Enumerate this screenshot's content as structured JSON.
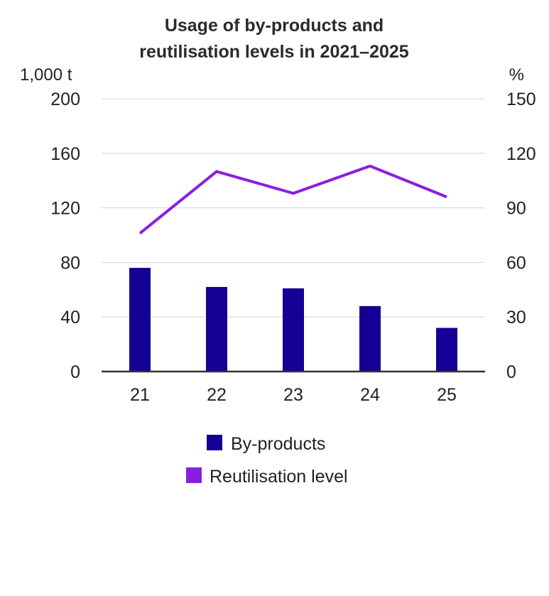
{
  "chart_data": {
    "type": "bar+line",
    "title_lines": [
      "Usage of by-products and",
      "reutilisation levels in 2021–2025"
    ],
    "categories": [
      "21",
      "22",
      "23",
      "24",
      "25"
    ],
    "left_axis": {
      "unit": "1,000 t",
      "ylim": [
        0,
        200
      ],
      "ticks": [
        "0",
        "40",
        "80",
        "120",
        "160",
        "200"
      ]
    },
    "right_axis": {
      "unit": "%",
      "ylim": [
        0,
        150
      ],
      "ticks": [
        "0",
        "30",
        "60",
        "90",
        "120",
        "150"
      ]
    },
    "grid": true,
    "legend_position": "bottom",
    "series": [
      {
        "name": "By-products",
        "kind": "bar",
        "axis": "left",
        "color": "#150096",
        "values": [
          76,
          62,
          61,
          48,
          32
        ]
      },
      {
        "name": "Reutilisation level",
        "kind": "line",
        "axis": "right",
        "color": "#8a1ee0",
        "values": [
          76,
          110,
          98,
          113,
          96
        ]
      }
    ]
  }
}
